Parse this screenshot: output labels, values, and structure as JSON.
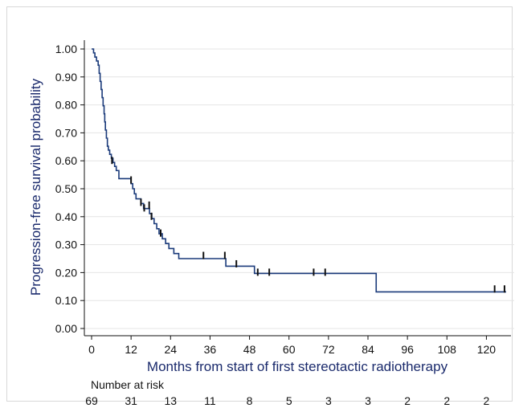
{
  "chart_data": {
    "type": "line",
    "xlabel": "Months from start of first stereotactic radiotherapy",
    "ylabel": "Progression-free survival probability",
    "xlim": [
      0,
      126
    ],
    "ylim": [
      0,
      1
    ],
    "x_ticks": [
      0,
      12,
      24,
      36,
      48,
      60,
      72,
      84,
      96,
      108,
      120
    ],
    "x_tick_labels": [
      "0",
      "12",
      "24",
      "36",
      "48",
      "60",
      "72",
      "84",
      "96",
      "108",
      "120"
    ],
    "y_ticks": [
      0,
      0.1,
      0.2,
      0.3,
      0.4,
      0.5,
      0.6,
      0.7,
      0.8,
      0.9,
      1.0
    ],
    "y_tick_labels": [
      "0.00",
      "0.10",
      "0.20",
      "0.30",
      "0.40",
      "0.50",
      "0.60",
      "0.70",
      "0.80",
      "0.90",
      "1.00"
    ],
    "grid": true,
    "line_color": "#1a3a7a",
    "series": [
      {
        "steps": [
          [
            0,
            1.0
          ],
          [
            0.6,
            0.986
          ],
          [
            1.0,
            0.971
          ],
          [
            1.5,
            0.957
          ],
          [
            2.0,
            0.942
          ],
          [
            2.3,
            0.913
          ],
          [
            2.6,
            0.884
          ],
          [
            2.9,
            0.855
          ],
          [
            3.2,
            0.826
          ],
          [
            3.5,
            0.797
          ],
          [
            3.8,
            0.768
          ],
          [
            4.0,
            0.739
          ],
          [
            4.2,
            0.71
          ],
          [
            4.5,
            0.681
          ],
          [
            4.8,
            0.652
          ],
          [
            5.1,
            0.638
          ],
          [
            5.5,
            0.623
          ],
          [
            6.0,
            0.609
          ],
          [
            6.5,
            0.594
          ],
          [
            7.0,
            0.58
          ],
          [
            7.5,
            0.565
          ],
          [
            8.3,
            0.536
          ],
          [
            12.0,
            0.518
          ],
          [
            12.5,
            0.5
          ],
          [
            13.0,
            0.482
          ],
          [
            13.5,
            0.464
          ],
          [
            15.0,
            0.447
          ],
          [
            15.8,
            0.429
          ],
          [
            17.6,
            0.411
          ],
          [
            18.3,
            0.393
          ],
          [
            19.0,
            0.375
          ],
          [
            19.8,
            0.357
          ],
          [
            20.5,
            0.339
          ],
          [
            21.5,
            0.321
          ],
          [
            22.5,
            0.304
          ],
          [
            23.5,
            0.286
          ],
          [
            25.0,
            0.268
          ],
          [
            26.5,
            0.25
          ],
          [
            40.8,
            0.223
          ],
          [
            49.5,
            0.197
          ],
          [
            86.5,
            0.131
          ],
          [
            126,
            0.131
          ]
        ],
        "censored": [
          [
            6.2,
            0.6
          ],
          [
            12.0,
            0.53
          ],
          [
            15.0,
            0.45
          ],
          [
            16.0,
            0.43
          ],
          [
            17.5,
            0.44
          ],
          [
            18.2,
            0.4
          ],
          [
            21.0,
            0.34
          ],
          [
            34.0,
            0.26
          ],
          [
            40.5,
            0.26
          ],
          [
            44.0,
            0.23
          ],
          [
            50.5,
            0.2
          ],
          [
            54.0,
            0.2
          ],
          [
            67.5,
            0.2
          ],
          [
            71.0,
            0.2
          ],
          [
            122.5,
            0.14
          ],
          [
            125.5,
            0.14
          ]
        ]
      }
    ],
    "number_at_risk": {
      "title": "Number at risk",
      "values": [
        "69",
        "31",
        "13",
        "11",
        "8",
        "5",
        "3",
        "3",
        "2",
        "2",
        "2"
      ]
    }
  }
}
